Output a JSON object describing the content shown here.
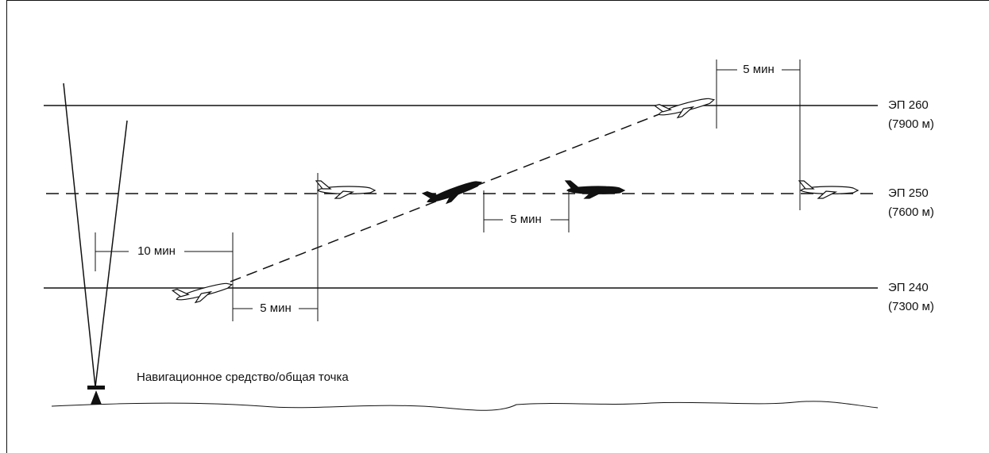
{
  "levels": [
    {
      "label": "ЭП 260",
      "altitude": "(7900 м)"
    },
    {
      "label": "ЭП 250",
      "altitude": "(7600 м)"
    },
    {
      "label": "ЭП 240",
      "altitude": "(7300 м)"
    }
  ],
  "intervals": [
    "5 мин",
    "5 мин",
    "10 мин",
    "5 мин"
  ],
  "navaid": "Навигационное средство/общая точка"
}
